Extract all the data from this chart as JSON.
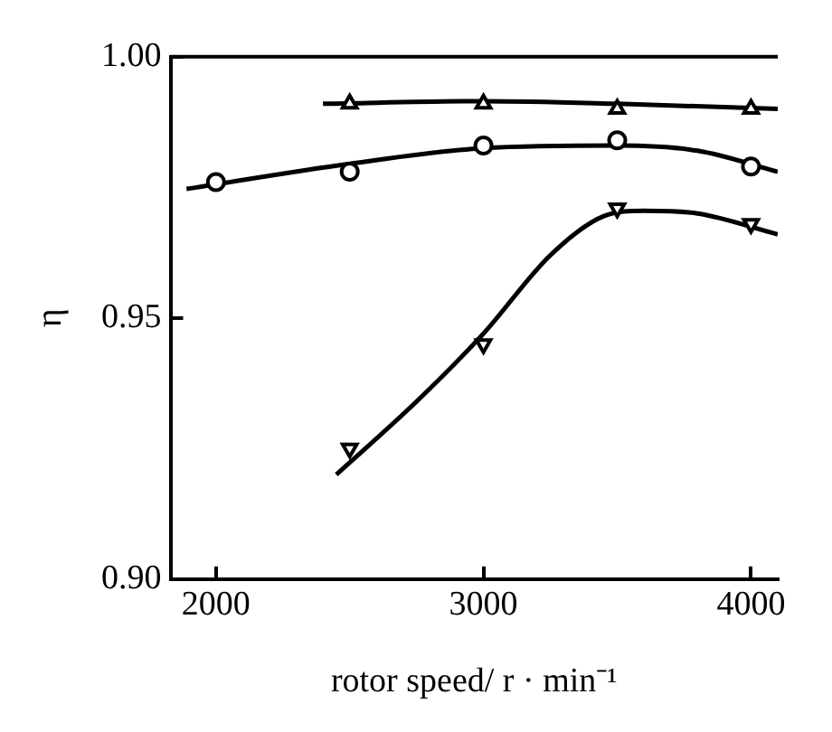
{
  "chart_data": {
    "type": "scatter",
    "xlabel": "rotor speed/ r · min⁻¹",
    "ylabel": "η",
    "xlim": [
      1830,
      4100
    ],
    "xticks": [
      2000,
      3000,
      4000
    ],
    "ylim": [
      0.9,
      1.0
    ],
    "yticks": [
      {
        "value": 0.9,
        "label": "0.90"
      },
      {
        "value": 0.95,
        "label": "0.95"
      },
      {
        "value": 1.0,
        "label": "1.00"
      }
    ],
    "grid": false,
    "legend": false,
    "series": [
      {
        "marker": "triangle",
        "color": "#000000",
        "x": [
          2500,
          3000,
          3500,
          4000
        ],
        "values": [
          0.991,
          0.991,
          0.99,
          0.99
        ]
      },
      {
        "marker": "circle",
        "color": "#000000",
        "x": [
          2000,
          2500,
          3000,
          3500,
          4000
        ],
        "values": [
          0.976,
          0.978,
          0.983,
          0.984,
          0.979
        ]
      },
      {
        "marker": "triangle_down",
        "color": "#000000",
        "x": [
          2500,
          3000,
          3500,
          4000
        ],
        "values": [
          0.925,
          0.945,
          0.971,
          0.968
        ]
      },
      {
        "type": "line",
        "marker": "none",
        "color": "#000000",
        "x": [
          2400,
          3000,
          3500,
          4100
        ],
        "values": [
          0.991,
          0.9915,
          0.991,
          0.99
        ]
      },
      {
        "type": "line",
        "marker": "none",
        "color": "#000000",
        "x": [
          1890,
          2500,
          3000,
          3500,
          3800,
          4100
        ],
        "values": [
          0.9747,
          0.9795,
          0.9825,
          0.983,
          0.982,
          0.978
        ]
      },
      {
        "type": "line",
        "marker": "none",
        "color": "#000000",
        "x": [
          2450,
          2750,
          3000,
          3250,
          3450,
          3600,
          3800,
          4100
        ],
        "values": [
          0.92,
          0.934,
          0.947,
          0.962,
          0.9695,
          0.9705,
          0.97,
          0.966
        ]
      }
    ]
  }
}
